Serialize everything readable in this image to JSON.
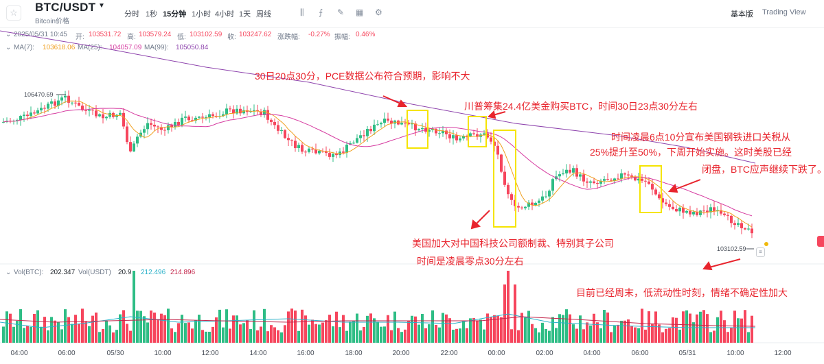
{
  "header": {
    "pair": "BTC/USDT",
    "subtitle": "Bitcoin价格",
    "timeframes": [
      "分时",
      "1秒",
      "15分钟",
      "1小时",
      "4小时",
      "1天",
      "周线"
    ],
    "active_timeframe": "15分钟",
    "tools": [
      "candle-type-icon",
      "indicator-icon",
      "drawing-icon",
      "layout-icon",
      "settings-icon"
    ],
    "version_basic": "基本版",
    "version_tv": "Trading View"
  },
  "ohlc": {
    "date": "2025/05/31 10:45",
    "open_label": "开:",
    "open": "103531.72",
    "high_label": "高:",
    "high": "103579.24",
    "low_label": "低:",
    "low": "103102.59",
    "close_label": "收:",
    "close": "103247.62",
    "change_label": "涨跌幅:",
    "change": "-0.27%",
    "amp_label": "振幅:",
    "amp": "0.46%"
  },
  "ma": {
    "ma7_label": "MA(7):",
    "ma7": "103618.06",
    "ma25_label": "MA(25):",
    "ma25": "104057.09",
    "ma99_label": "MA(99):",
    "ma99": "105050.84"
  },
  "price_marks": {
    "high": "106470.69",
    "low": "103102.59"
  },
  "volume": {
    "vol_btc_label": "Vol(BTC):",
    "vol_btc": "202.347",
    "vol_usdt_label": "Vol(USDT)",
    "vol_usdt": "20.9",
    "ma1": "212.496",
    "ma2": "214.896"
  },
  "annotations": {
    "a1": "30日20点30分，PCE数据公布符合预期，影响不大",
    "a2": "川普筹集24.4亿美金购买BTC，时间30日23点30分左右",
    "a3_1": "时间凌晨6点10分宣布美国钢铁进口关税从",
    "a3_2": "25%提升至50%，下周开始实施。这时美股已经",
    "a3_3": "闭盘，BTC应声继续下跌了。",
    "a4_1": "美国加大对中国科技公司额制裁、特别其子公司",
    "a4_2": "时间是凌晨零点30分左右",
    "a5": "目前已经周末，低流动性时刻，情绪不确定性加大"
  },
  "xaxis": [
    "04:00",
    "06:00",
    "05/30",
    "10:00",
    "12:00",
    "14:00",
    "16:00",
    "18:00",
    "20:00",
    "22:00",
    "00:00",
    "02:00",
    "04:00",
    "06:00",
    "05/31",
    "10:00",
    "12:00"
  ],
  "colors": {
    "up": "#2ebd85",
    "down": "#f6465d",
    "ma7": "#f0a020",
    "ma25": "#d63ba0",
    "ma99": "#8e44ad",
    "annotation": "#e8242d",
    "highlight": "#f5e400"
  }
}
